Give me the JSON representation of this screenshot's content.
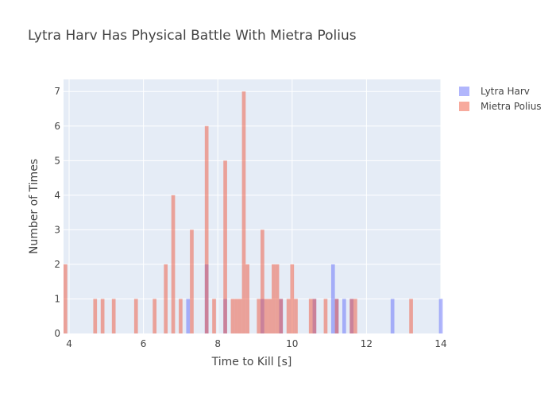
{
  "chart_data": {
    "type": "histogram",
    "title": "Lytra Harv Has Physical Battle With Mietra Polius",
    "xlabel": "Time to Kill [s]",
    "ylabel": "Number of Times",
    "xlim": [
      3.85,
      14
    ],
    "ylim": [
      0,
      7.35
    ],
    "xticks": [
      4,
      6,
      8,
      10,
      12,
      14
    ],
    "yticks": [
      0,
      1,
      2,
      3,
      4,
      5,
      6,
      7
    ],
    "grid": true,
    "legend_position": "top-right",
    "bar_width": 0.1,
    "series": [
      {
        "name": "Lytra Harv",
        "color": "#636efa",
        "opacity": 0.5,
        "x": [
          7.15,
          7.65,
          8.15,
          9.15,
          9.65,
          10.55,
          11.05,
          11.15,
          11.35,
          11.55,
          12.65,
          13.95
        ],
        "y": [
          1,
          2,
          1,
          1,
          1,
          1,
          2,
          1,
          1,
          1,
          1,
          1
        ]
      },
      {
        "name": "Mietra Polius",
        "color": "#ef553b",
        "opacity": 0.5,
        "x": [
          3.85,
          4.65,
          4.85,
          5.15,
          5.75,
          6.25,
          6.55,
          6.75,
          6.95,
          7.25,
          7.65,
          7.85,
          8.15,
          8.35,
          8.45,
          8.55,
          8.65,
          8.75,
          9.05,
          9.15,
          9.25,
          9.35,
          9.45,
          9.55,
          9.65,
          9.85,
          9.95,
          10.05,
          10.45,
          10.55,
          10.85,
          11.15,
          11.55,
          11.65,
          13.15
        ],
        "y": [
          2,
          1,
          1,
          1,
          1,
          1,
          2,
          4,
          1,
          3,
          6,
          1,
          5,
          1,
          1,
          1,
          7,
          2,
          1,
          3,
          1,
          1,
          2,
          2,
          1,
          1,
          2,
          1,
          1,
          1,
          1,
          1,
          1,
          1,
          1
        ]
      }
    ]
  }
}
